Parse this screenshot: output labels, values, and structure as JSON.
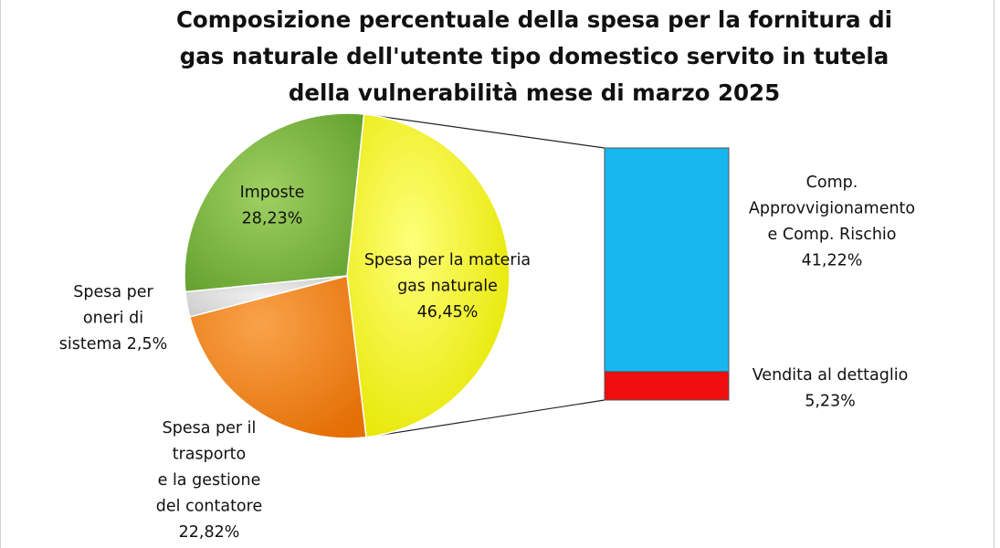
{
  "chart_data": {
    "type": "pie",
    "title_lines": [
      "Composizione percentuale della spesa per la fornitura di",
      "gas naturale dell'utente tipo domestico servito in tutela",
      "della vulnerabilità mese di marzo 2025"
    ],
    "slices": [
      {
        "key": "materia",
        "label_lines": [
          "Spesa per la materia",
          "gas naturale",
          "46,45%"
        ],
        "value": 46.45,
        "color": "#f2f200"
      },
      {
        "key": "trasporto",
        "label_lines": [
          "Spesa per il",
          "trasporto",
          "e la gestione",
          "del contatore",
          "22,82%"
        ],
        "value": 22.82,
        "color": "#f07d0c"
      },
      {
        "key": "oneri",
        "label_lines": [
          "Spesa per",
          "oneri di",
          "sistema 2,5%"
        ],
        "value": 2.5,
        "color": "#dedede"
      },
      {
        "key": "imposte",
        "label_lines": [
          "Imposte",
          "28,23%"
        ],
        "value": 28.23,
        "color": "#73b236"
      }
    ],
    "breakdown": {
      "of": "materia",
      "segments": [
        {
          "key": "approvvigionamento",
          "label_lines": [
            "Comp.",
            "Approvvigionamento",
            "e  Comp. Rischio",
            "41,22%"
          ],
          "value": 41.22,
          "color": "#16b7ef"
        },
        {
          "key": "vendita",
          "label_lines": [
            "Vendita al dettaglio",
            "5,23%"
          ],
          "value": 5.23,
          "color": "#ef0d0d"
        }
      ]
    }
  }
}
